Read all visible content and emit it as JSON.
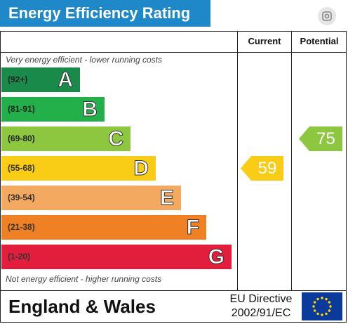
{
  "title": "Energy Efficiency Rating",
  "columns": {
    "current": "Current",
    "potential": "Potential"
  },
  "top_caption": "Very energy efficient - lower running costs",
  "bottom_caption": "Not energy efficient - higher running costs",
  "region": "England & Wales",
  "directive": {
    "line1": "EU Directive",
    "line2": "2002/91/EC"
  },
  "icons": {
    "lens": "lens-icon",
    "flag": "eu-flag-icon"
  },
  "chart_data": {
    "type": "bar",
    "categories": [
      "A",
      "B",
      "C",
      "D",
      "E",
      "F",
      "G"
    ],
    "ranges": [
      "(92+)",
      "(81-91)",
      "(69-80)",
      "(55-68)",
      "(39-54)",
      "(21-38)",
      "(1-20)"
    ],
    "colors": [
      "#1a8a4a",
      "#23b04b",
      "#8dc63f",
      "#f9cc16",
      "#f4a960",
      "#ef8023",
      "#e31d3c"
    ],
    "current": {
      "value": "59",
      "band": "D",
      "color": "#f9cc16"
    },
    "potential": {
      "value": "75",
      "band": "C",
      "color": "#8dc63f"
    }
  }
}
